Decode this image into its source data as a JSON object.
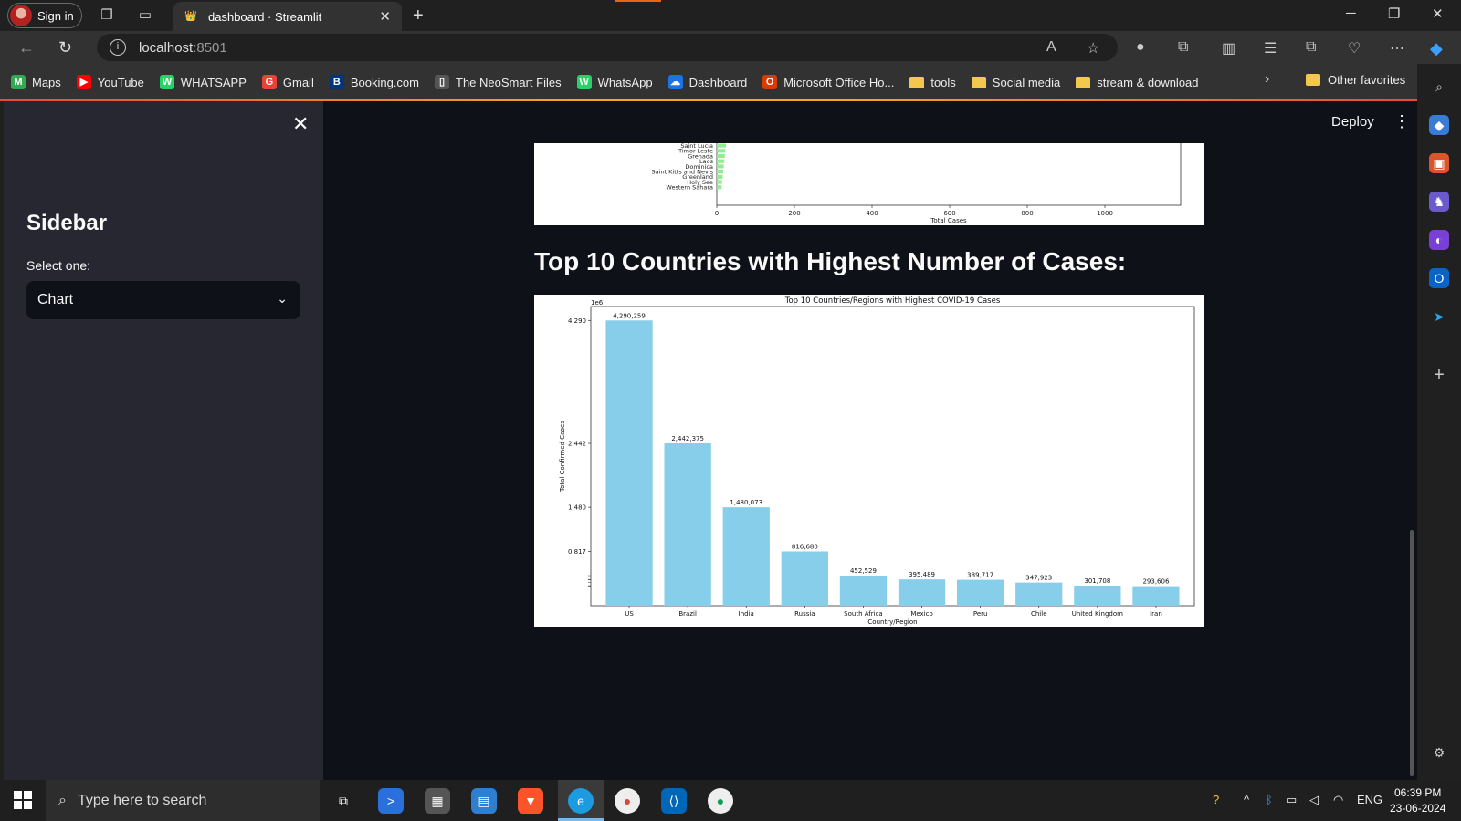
{
  "browser": {
    "signin_label": "Sign in",
    "tab_title": "dashboard · Streamlit",
    "url_host": "localhost",
    "url_port": ":8501"
  },
  "bookmarks": [
    {
      "label": "Maps",
      "color": "#34a853",
      "glyph": "M"
    },
    {
      "label": "YouTube",
      "color": "#ff0000",
      "glyph": "▶"
    },
    {
      "label": "WHATSAPP",
      "color": "#25d366",
      "glyph": "W"
    },
    {
      "label": "Gmail",
      "color": "#ea4335",
      "glyph": "G"
    },
    {
      "label": "Booking.com",
      "color": "#003580",
      "glyph": "B"
    },
    {
      "label": "The NeoSmart Files",
      "color": "#555555",
      "glyph": "▯"
    },
    {
      "label": "WhatsApp",
      "color": "#25d366",
      "glyph": "W"
    },
    {
      "label": "Dashboard",
      "color": "#1a73e8",
      "glyph": "☁"
    },
    {
      "label": "Microsoft Office Ho...",
      "color": "#d83b01",
      "glyph": "O"
    },
    {
      "label": "tools",
      "folder": true
    },
    {
      "label": "Social media",
      "folder": true
    },
    {
      "label": "stream & download",
      "folder": true
    }
  ],
  "bookmarks_other": "Other favorites",
  "sidebar": {
    "title": "Sidebar",
    "select_label": "Select one:",
    "select_value": "Chart"
  },
  "main": {
    "deploy_label": "Deploy",
    "heading": "Top 10 Countries with Highest Number of Cases:"
  },
  "top_chart": {
    "countries": [
      "Saint Lucia",
      "Timor-Leste",
      "Grenada",
      "Laos",
      "Dominica",
      "Saint Kitts and Nevis",
      "Greenland",
      "Holy See",
      "Western Sahara"
    ],
    "xticks": [
      "0",
      "200",
      "400",
      "600",
      "800",
      "1000"
    ],
    "xlabel": "Total Cases"
  },
  "chart_data": {
    "type": "bar",
    "title": "Top 10 Countries/Regions with Highest COVID-19 Cases",
    "xlabel": "Country/Region",
    "ylabel": "Total Confirmed Cases",
    "offset_label": "1e6",
    "categories": [
      "US",
      "Brazil",
      "India",
      "Russia",
      "South Africa",
      "Mexico",
      "Peru",
      "Chile",
      "United Kingdom",
      "Iran"
    ],
    "values": [
      4290259,
      2442375,
      1480073,
      816680,
      452529,
      395489,
      389717,
      347923,
      301708,
      293606
    ],
    "value_labels": [
      "4,290,259",
      "2,442,375",
      "1,480,073",
      "816,680",
      "452,529",
      "395,489",
      "389,717",
      "347,923",
      "301,708",
      "293,606"
    ],
    "yticks": [
      {
        "value": 4.29,
        "label": "4.290"
      },
      {
        "value": 2.442,
        "label": "2.442"
      },
      {
        "value": 1.48,
        "label": "1.480"
      },
      {
        "value": 0.817,
        "label": "0.817"
      }
    ],
    "ylim": [
      0,
      4.5
    ],
    "bar_color": "#87ceeb",
    "grid": false
  },
  "taskbar": {
    "search_placeholder": "Type here to search",
    "lang": "ENG",
    "time": "06:39 PM",
    "date": "23-06-2024"
  }
}
